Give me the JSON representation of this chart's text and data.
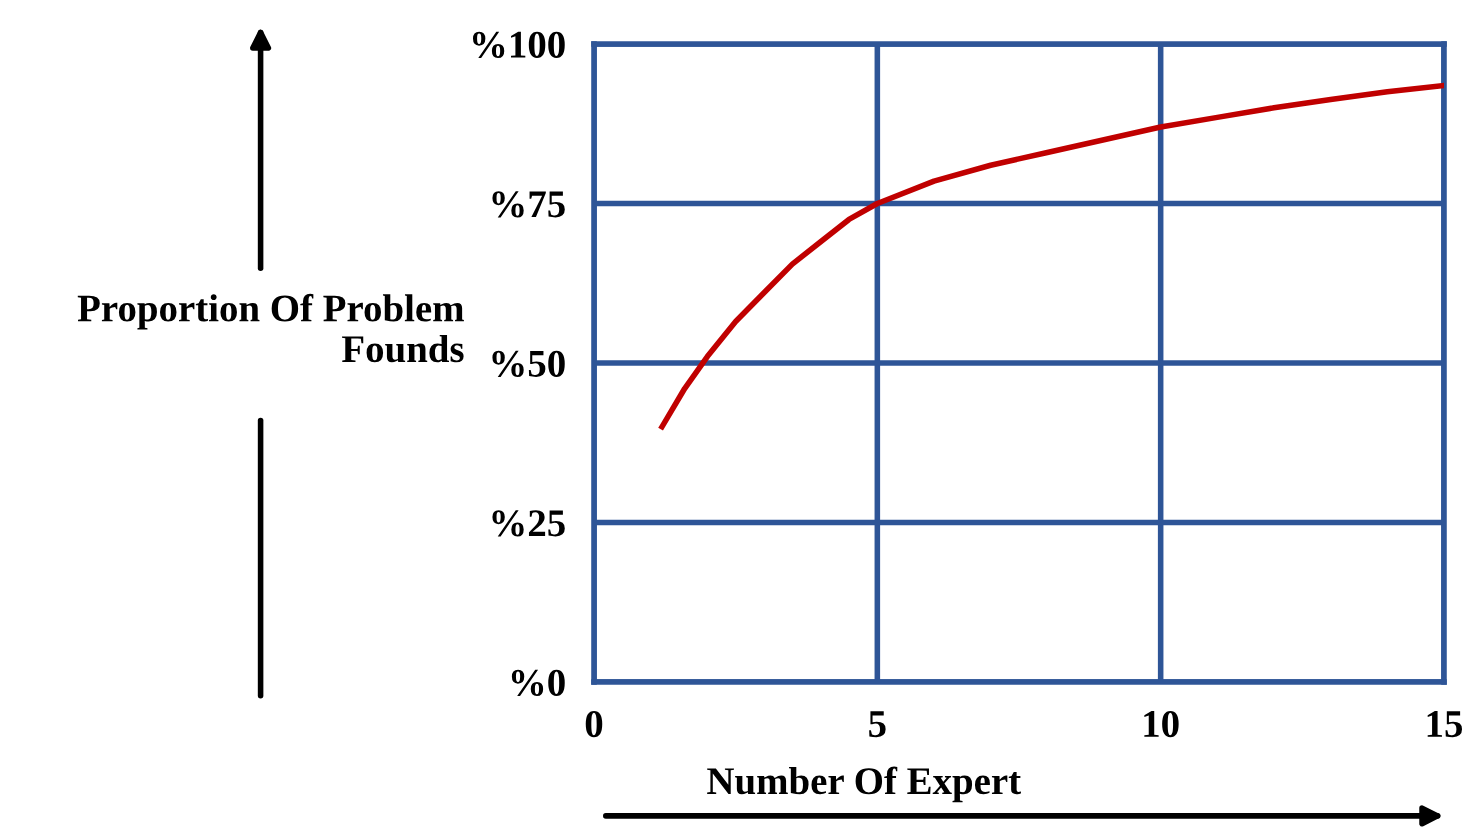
{
  "chart_data": {
    "type": "line",
    "xlabel": "Number Of Expert",
    "ylabel": "Proportion Of Problem\nFounds",
    "x": [
      1.2,
      1.6,
      2,
      2.5,
      3,
      3.5,
      4,
      4.5,
      5,
      6,
      7,
      8,
      9,
      10,
      11,
      12,
      13,
      14,
      15
    ],
    "series": [
      {
        "color": "#c00000",
        "values": [
          40,
          46,
          51,
          56.5,
          61,
          65.5,
          69,
          72.5,
          75,
          78.5,
          81,
          83,
          85,
          87,
          88.5,
          90,
          91.3,
          92.5,
          93.5
        ]
      }
    ],
    "xlim": [
      0,
      15
    ],
    "ylim": [
      0,
      100
    ],
    "xticks": [
      0,
      5,
      10,
      15
    ],
    "yticks": [
      {
        "value": 0,
        "label": "%0"
      },
      {
        "value": 25,
        "label": "%25"
      },
      {
        "value": 50,
        "label": "%50"
      },
      {
        "value": 75,
        "label": "%75"
      },
      {
        "value": 100,
        "label": "%100"
      }
    ],
    "grid": true,
    "marker": "none",
    "line_style": "solid"
  }
}
